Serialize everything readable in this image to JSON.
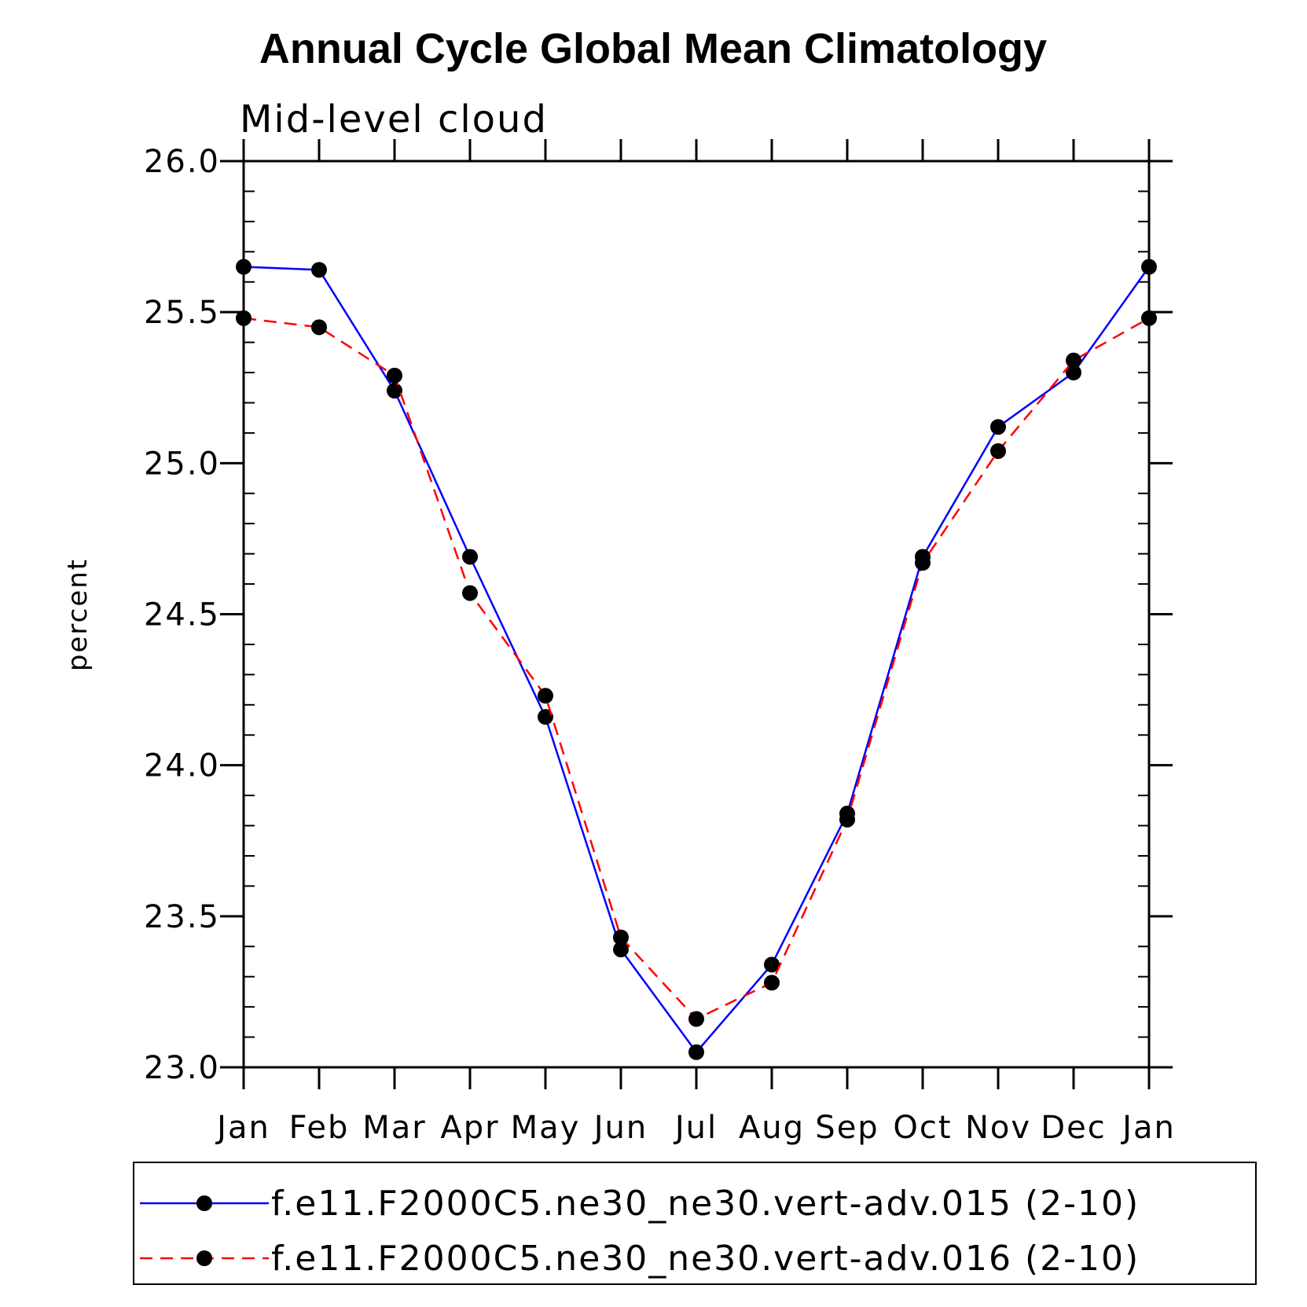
{
  "chart_data": {
    "type": "line",
    "title": "Annual Cycle Global Mean Climatology",
    "subtitle": "Mid-level cloud",
    "ylabel": "percent",
    "xlabel": "",
    "categories": [
      "Jan",
      "Feb",
      "Mar",
      "Apr",
      "May",
      "Jun",
      "Jul",
      "Aug",
      "Sep",
      "Oct",
      "Nov",
      "Dec",
      "Jan"
    ],
    "ylim": [
      23.0,
      26.0
    ],
    "yticks": [
      "23.0",
      "23.5",
      "24.0",
      "24.5",
      "25.0",
      "25.5",
      "26.0"
    ],
    "yticks_values": [
      23.0,
      23.5,
      24.0,
      24.5,
      25.0,
      25.5,
      26.0
    ],
    "grid": false,
    "legend_placement": "bottom",
    "series": [
      {
        "name": "f.e11.F2000C5.ne30_ne30.vert-adv.015 (2-10)",
        "color": "#0000ff",
        "style": "solid",
        "marker": "filled-circle",
        "values": [
          25.65,
          25.64,
          25.24,
          24.69,
          24.16,
          23.39,
          23.05,
          23.34,
          23.84,
          24.69,
          25.12,
          25.3,
          25.65
        ]
      },
      {
        "name": "f.e11.F2000C5.ne30_ne30.vert-adv.016 (2-10)",
        "color": "#ff0000",
        "style": "dashed",
        "marker": "filled-circle",
        "values": [
          25.48,
          25.45,
          25.29,
          24.57,
          24.23,
          23.43,
          23.16,
          23.28,
          23.82,
          24.67,
          25.04,
          25.34,
          25.48
        ]
      }
    ]
  }
}
